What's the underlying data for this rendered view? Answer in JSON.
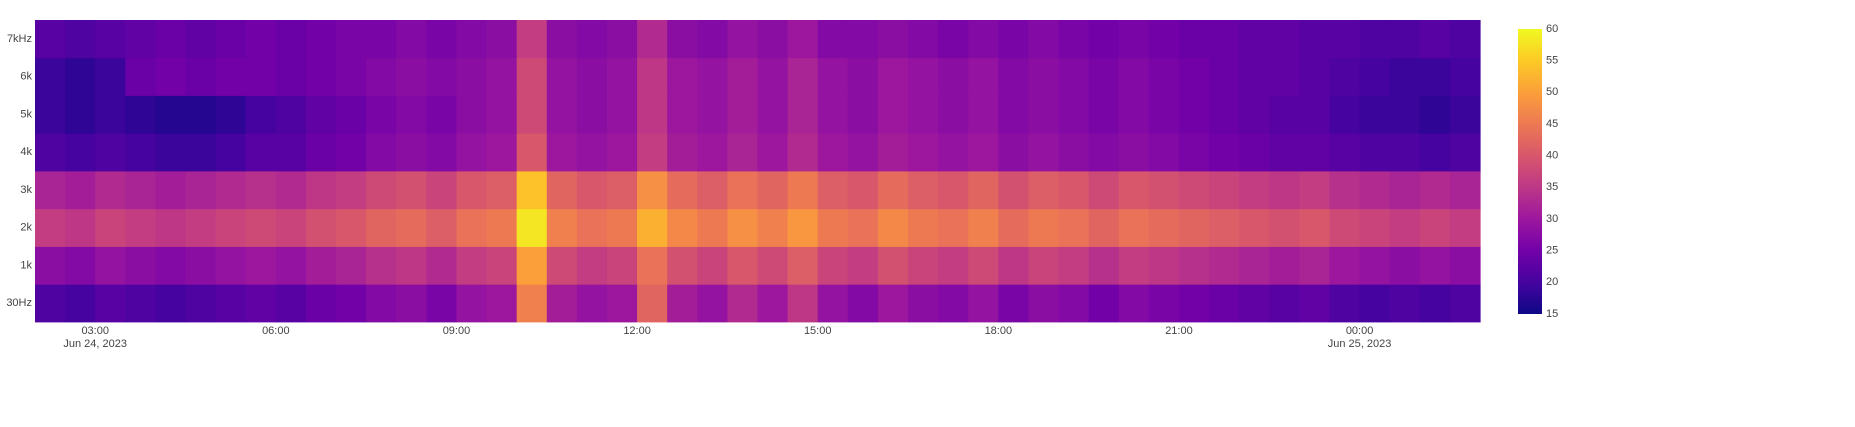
{
  "chart_data": {
    "type": "heatmap",
    "y": [
      "30Hz",
      "1k",
      "2k",
      "3k",
      "4k",
      "5k",
      "6k",
      "7kHz"
    ],
    "x": [
      "2023-06-24 02:15",
      "2023-06-24 02:45",
      "2023-06-24 03:15",
      "2023-06-24 03:45",
      "2023-06-24 04:15",
      "2023-06-24 04:45",
      "2023-06-24 05:15",
      "2023-06-24 05:45",
      "2023-06-24 06:15",
      "2023-06-24 06:45",
      "2023-06-24 07:15",
      "2023-06-24 07:45",
      "2023-06-24 08:15",
      "2023-06-24 08:45",
      "2023-06-24 09:15",
      "2023-06-24 09:45",
      "2023-06-24 10:15",
      "2023-06-24 10:45",
      "2023-06-24 11:15",
      "2023-06-24 11:45",
      "2023-06-24 12:15",
      "2023-06-24 12:45",
      "2023-06-24 13:15",
      "2023-06-24 13:45",
      "2023-06-24 14:15",
      "2023-06-24 14:45",
      "2023-06-24 15:15",
      "2023-06-24 15:45",
      "2023-06-24 16:15",
      "2023-06-24 16:45",
      "2023-06-24 17:15",
      "2023-06-24 17:45",
      "2023-06-24 18:15",
      "2023-06-24 18:45",
      "2023-06-24 19:15",
      "2023-06-24 19:45",
      "2023-06-24 20:15",
      "2023-06-24 20:45",
      "2023-06-24 21:15",
      "2023-06-24 21:45",
      "2023-06-24 22:15",
      "2023-06-24 22:45",
      "2023-06-24 23:15",
      "2023-06-24 23:45",
      "2023-06-25 00:15",
      "2023-06-25 00:45",
      "2023-06-25 01:15",
      "2023-06-25 01:45"
    ],
    "z": [
      [
        21,
        20,
        22,
        21,
        20,
        21,
        22,
        23,
        22,
        24,
        25,
        27,
        28,
        26,
        29,
        30,
        46,
        31,
        29,
        30,
        42,
        31,
        29,
        33,
        30,
        35,
        29,
        27,
        30,
        28,
        27,
        29,
        26,
        28,
        27,
        25,
        27,
        26,
        25,
        24,
        23,
        22,
        23,
        21,
        20,
        21,
        20,
        21
      ],
      [
        28,
        27,
        29,
        28,
        27,
        28,
        29,
        30,
        29,
        31,
        32,
        34,
        35,
        33,
        36,
        37,
        50,
        38,
        36,
        37,
        44,
        39,
        37,
        40,
        38,
        41,
        37,
        36,
        39,
        37,
        36,
        38,
        35,
        37,
        36,
        34,
        36,
        35,
        34,
        33,
        32,
        31,
        32,
        30,
        29,
        28,
        29,
        28
      ],
      [
        36,
        35,
        37,
        36,
        35,
        36,
        37,
        38,
        37,
        39,
        40,
        42,
        43,
        41,
        44,
        45,
        58,
        46,
        44,
        45,
        52,
        47,
        45,
        48,
        46,
        49,
        45,
        44,
        47,
        45,
        44,
        46,
        43,
        45,
        44,
        42,
        44,
        43,
        42,
        41,
        40,
        39,
        40,
        38,
        37,
        36,
        37,
        36
      ],
      [
        32,
        31,
        33,
        32,
        31,
        32,
        33,
        34,
        33,
        35,
        36,
        38,
        39,
        37,
        40,
        41,
        54,
        42,
        40,
        41,
        48,
        43,
        41,
        44,
        42,
        45,
        41,
        40,
        43,
        41,
        40,
        42,
        39,
        41,
        40,
        38,
        40,
        39,
        38,
        37,
        36,
        35,
        36,
        34,
        33,
        32,
        33,
        32
      ],
      [
        21,
        20,
        21,
        20,
        19,
        19,
        20,
        22,
        22,
        24,
        25,
        27,
        28,
        27,
        29,
        30,
        40,
        30,
        29,
        30,
        36,
        31,
        30,
        32,
        30,
        33,
        30,
        29,
        31,
        30,
        29,
        30,
        28,
        29,
        28,
        27,
        28,
        27,
        26,
        25,
        24,
        23,
        23,
        22,
        21,
        21,
        20,
        21
      ],
      [
        19,
        18,
        19,
        18,
        17,
        17,
        18,
        20,
        21,
        23,
        24,
        26,
        27,
        26,
        28,
        29,
        38,
        29,
        28,
        29,
        35,
        30,
        29,
        31,
        29,
        32,
        29,
        28,
        30,
        29,
        28,
        29,
        27,
        28,
        27,
        26,
        27,
        26,
        25,
        24,
        23,
        22,
        22,
        20,
        19,
        19,
        18,
        19
      ],
      [
        19,
        18,
        19,
        24,
        25,
        24,
        25,
        25,
        24,
        25,
        26,
        27,
        28,
        27,
        28,
        29,
        38,
        29,
        28,
        29,
        35,
        30,
        29,
        31,
        29,
        32,
        29,
        28,
        30,
        29,
        28,
        29,
        27,
        28,
        27,
        26,
        27,
        26,
        25,
        24,
        23,
        23,
        22,
        21,
        20,
        19,
        19,
        20
      ],
      [
        22,
        21,
        22,
        23,
        24,
        23,
        24,
        25,
        24,
        25,
        26,
        26,
        27,
        26,
        27,
        28,
        36,
        28,
        27,
        28,
        33,
        28,
        27,
        29,
        28,
        30,
        27,
        27,
        28,
        27,
        26,
        27,
        26,
        27,
        26,
        25,
        26,
        25,
        24,
        24,
        23,
        23,
        22,
        22,
        21,
        21,
        22,
        21
      ]
    ],
    "xlim": [
      "2023-06-24 02:00",
      "2023-06-25 02:00"
    ],
    "xticks": [
      {
        "value": "2023-06-24 03:00",
        "label": "03:00"
      },
      {
        "value": "2023-06-24 06:00",
        "label": "06:00"
      },
      {
        "value": "2023-06-24 09:00",
        "label": "09:00"
      },
      {
        "value": "2023-06-24 12:00",
        "label": "12:00"
      },
      {
        "value": "2023-06-24 15:00",
        "label": "15:00"
      },
      {
        "value": "2023-06-24 18:00",
        "label": "18:00"
      },
      {
        "value": "2023-06-24 21:00",
        "label": "21:00"
      },
      {
        "value": "2023-06-25 00:00",
        "label": "00:00"
      }
    ],
    "x_date_labels": [
      {
        "value": "2023-06-24 03:00",
        "label": "Jun 24, 2023"
      },
      {
        "value": "2023-06-25 00:00",
        "label": "Jun 25, 2023"
      }
    ],
    "zlim": [
      15,
      60
    ],
    "zticks": [
      15,
      20,
      25,
      30,
      35,
      40,
      45,
      50,
      55,
      60
    ],
    "colorscale": [
      "#0d0887",
      "#46039f",
      "#7201a8",
      "#9c179e",
      "#bd3786",
      "#d8576b",
      "#ed7953",
      "#fb9f3a",
      "#fdca26",
      "#f0f921"
    ]
  }
}
